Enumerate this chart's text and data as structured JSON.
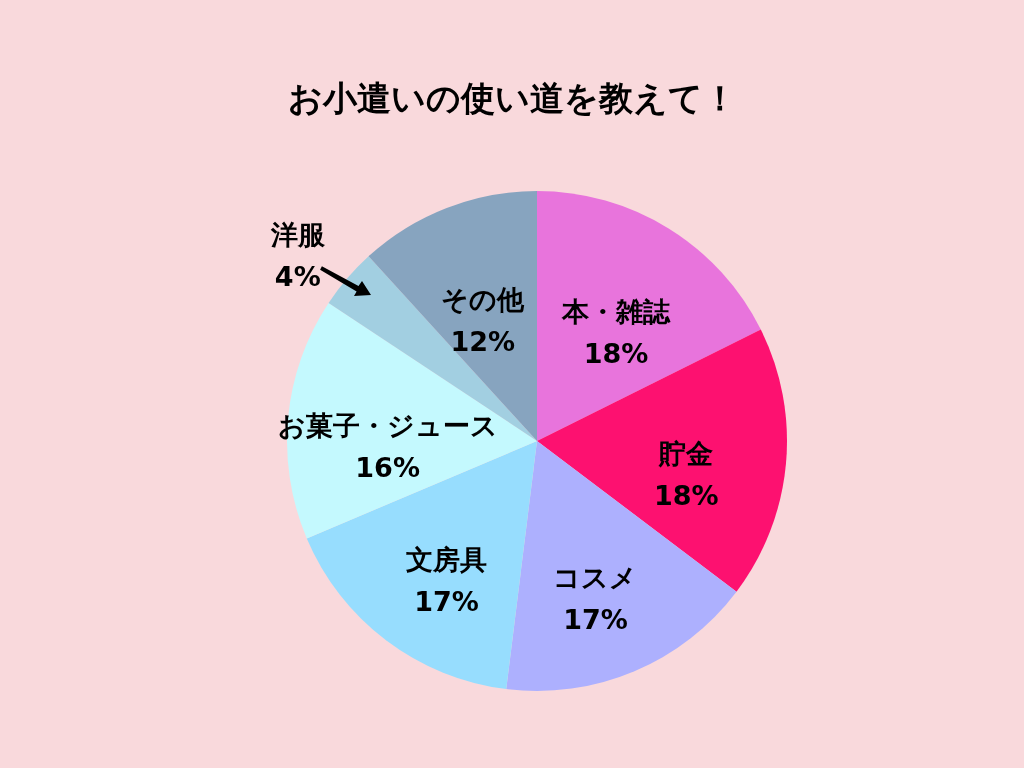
{
  "chart_data": {
    "type": "pie",
    "title": "お小遣いの使い道を教えて！",
    "categories": [
      "本・雑誌",
      "貯金",
      "コスメ",
      "文房具",
      "お菓子・ジュース",
      "洋服",
      "その他"
    ],
    "values": [
      18,
      18,
      17,
      17,
      16,
      4,
      12
    ],
    "value_labels": [
      "18%",
      "18%",
      "17%",
      "17%",
      "16%",
      "4%",
      "12%"
    ],
    "colors": [
      "#e874dc",
      "#fd1170",
      "#adb0fe",
      "#97ddfe",
      "#c4f9fe",
      "#a2cfe1",
      "#87a4bf"
    ]
  }
}
